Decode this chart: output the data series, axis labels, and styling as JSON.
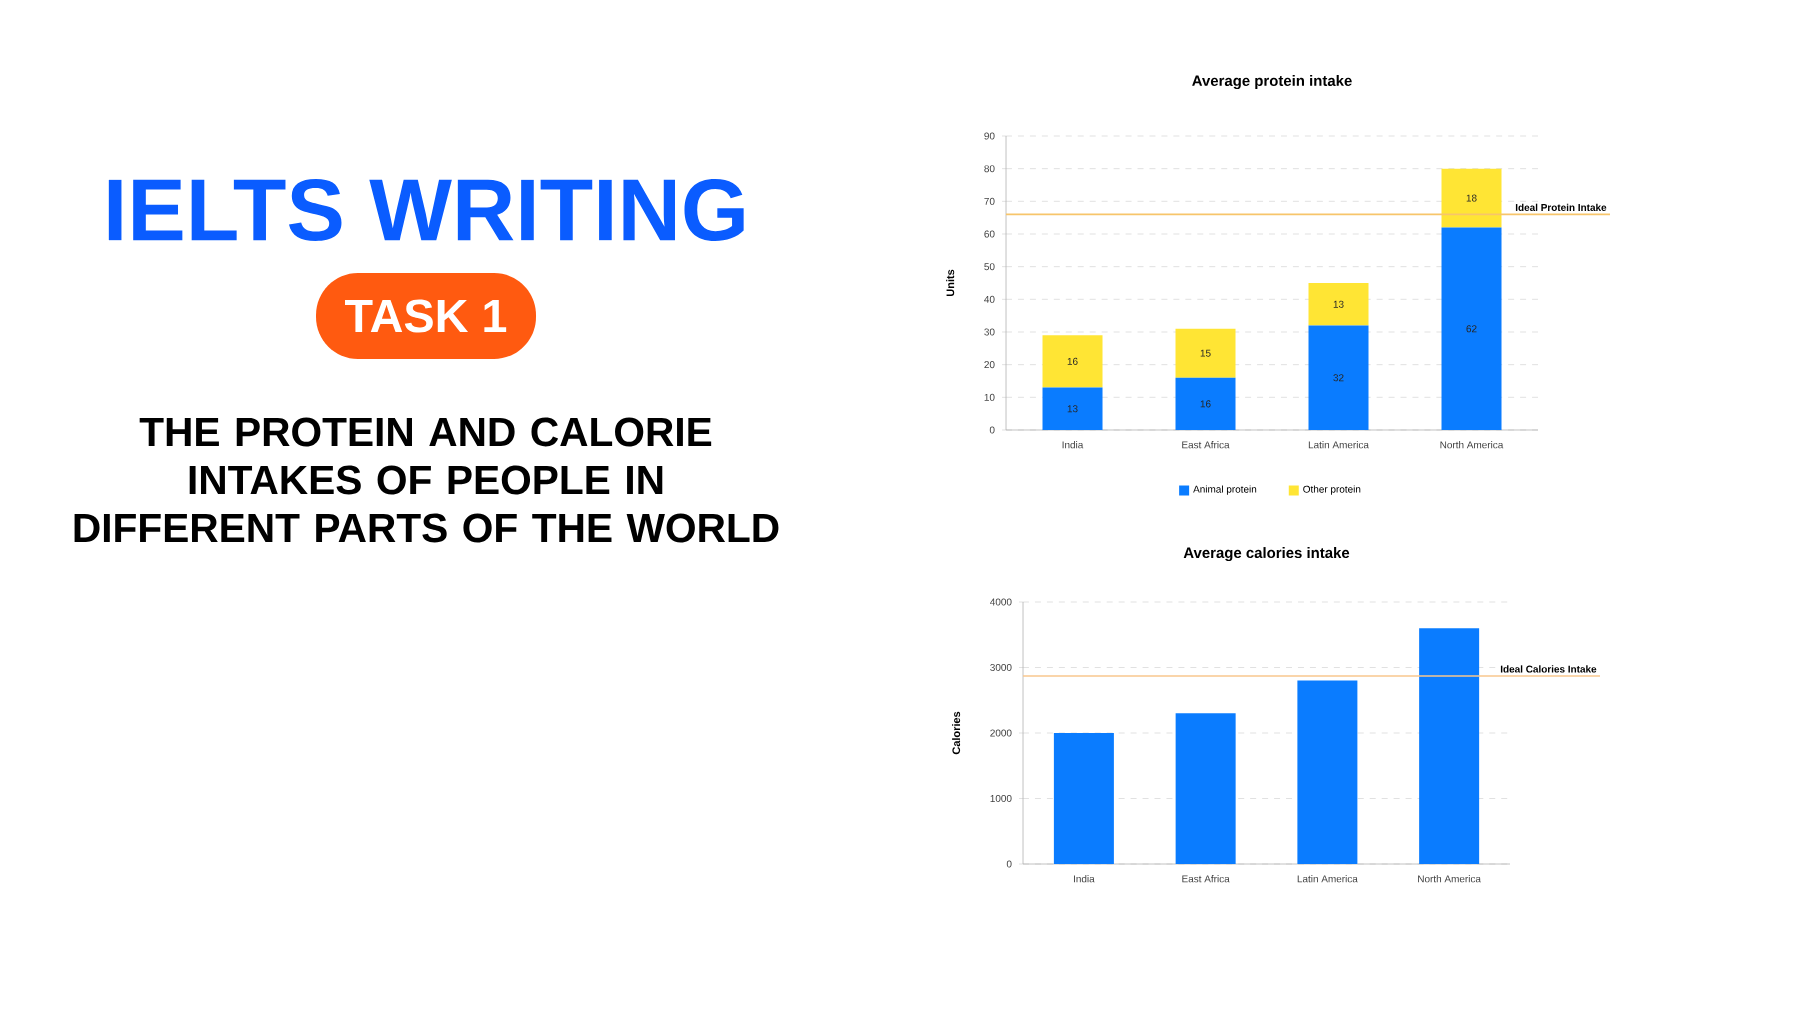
{
  "chart_data": [
    {
      "type": "other",
      "title": "IELTS WRITING",
      "subtitle": "TASK 1",
      "annotations": [
        "THE PROTEIN AND CALORIE INTAKES OF PEOPLE IN DIFFERENT PARTS OF THE WORLD"
      ]
    },
    {
      "type": "bar",
      "title": "Average protein intake",
      "ylabel": "Units",
      "categories": [
        "India",
        "East Africa",
        "Latin America",
        "North America"
      ],
      "stacked": true,
      "series": [
        {
          "name": "Animal protein",
          "color": "#0a7cff",
          "values": [
            13,
            16,
            32,
            62
          ]
        },
        {
          "name": "Other protein",
          "color": "#ffe534",
          "values": [
            16,
            15,
            13,
            18
          ]
        }
      ],
      "ylim": [
        0,
        90
      ],
      "yticks": [
        0,
        10,
        20,
        30,
        40,
        50,
        60,
        70,
        80,
        90
      ],
      "grid": "y",
      "legend": "bottom",
      "data_labels": true,
      "ref_lines": [
        {
          "axis": "y",
          "value": 66,
          "label": "Ideal Protein Intake",
          "color": "#f7c56b"
        }
      ]
    },
    {
      "type": "bar",
      "title": "Average calories intake",
      "ylabel": "Calories",
      "categories": [
        "India",
        "East Africa",
        "Latin America",
        "North America"
      ],
      "values": [
        2000,
        2300,
        2800,
        3600
      ],
      "color": "#0a7cff",
      "ylim": [
        0,
        4000
      ],
      "yticks": [
        0,
        1000,
        2000,
        3000,
        4000
      ],
      "grid": "y",
      "ref_lines": [
        {
          "axis": "y",
          "value": 2870,
          "label": "Ideal Calories Intake",
          "color": "#f9c78e"
        }
      ]
    }
  ]
}
